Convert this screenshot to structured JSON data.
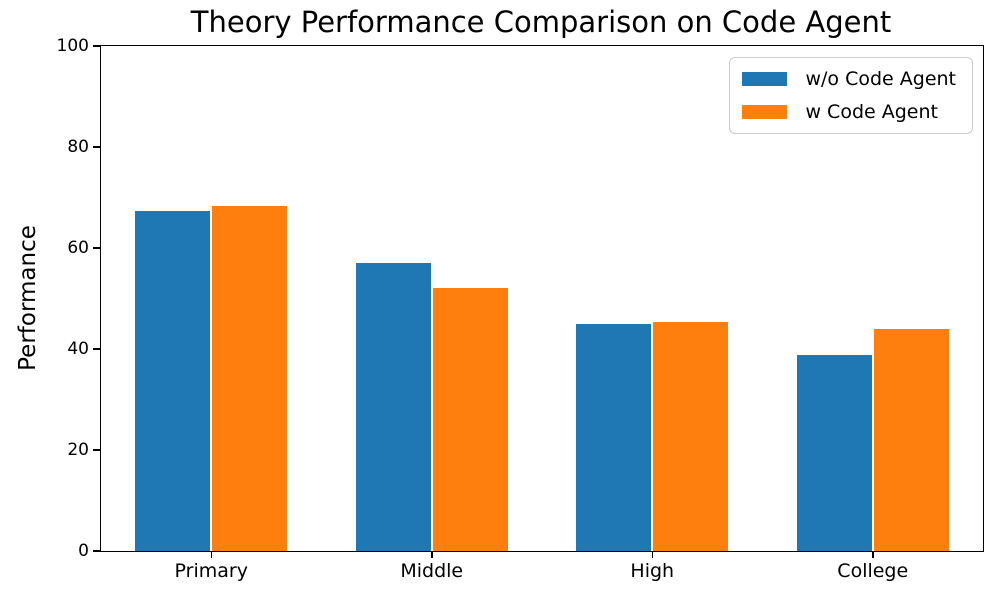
{
  "chart_data": {
    "type": "bar",
    "title": "Theory Performance Comparison on Code Agent",
    "xlabel": "",
    "ylabel": "Performance",
    "categories": [
      "Primary",
      "Middle",
      "High",
      "College"
    ],
    "series": [
      {
        "name": "w/o Code Agent",
        "color": "#1f77b4",
        "values": [
          67.4,
          57.0,
          45.0,
          38.9
        ]
      },
      {
        "name": "w Code Agent",
        "color": "#ff7f0e",
        "values": [
          68.4,
          52.1,
          45.3,
          43.9
        ]
      }
    ],
    "ylim": [
      0,
      100
    ],
    "yticks": [
      0,
      20,
      40,
      60,
      80,
      100
    ],
    "grid": false,
    "legend_position": "upper right",
    "axis_color": "#000000",
    "background_color": "#ffffff"
  }
}
